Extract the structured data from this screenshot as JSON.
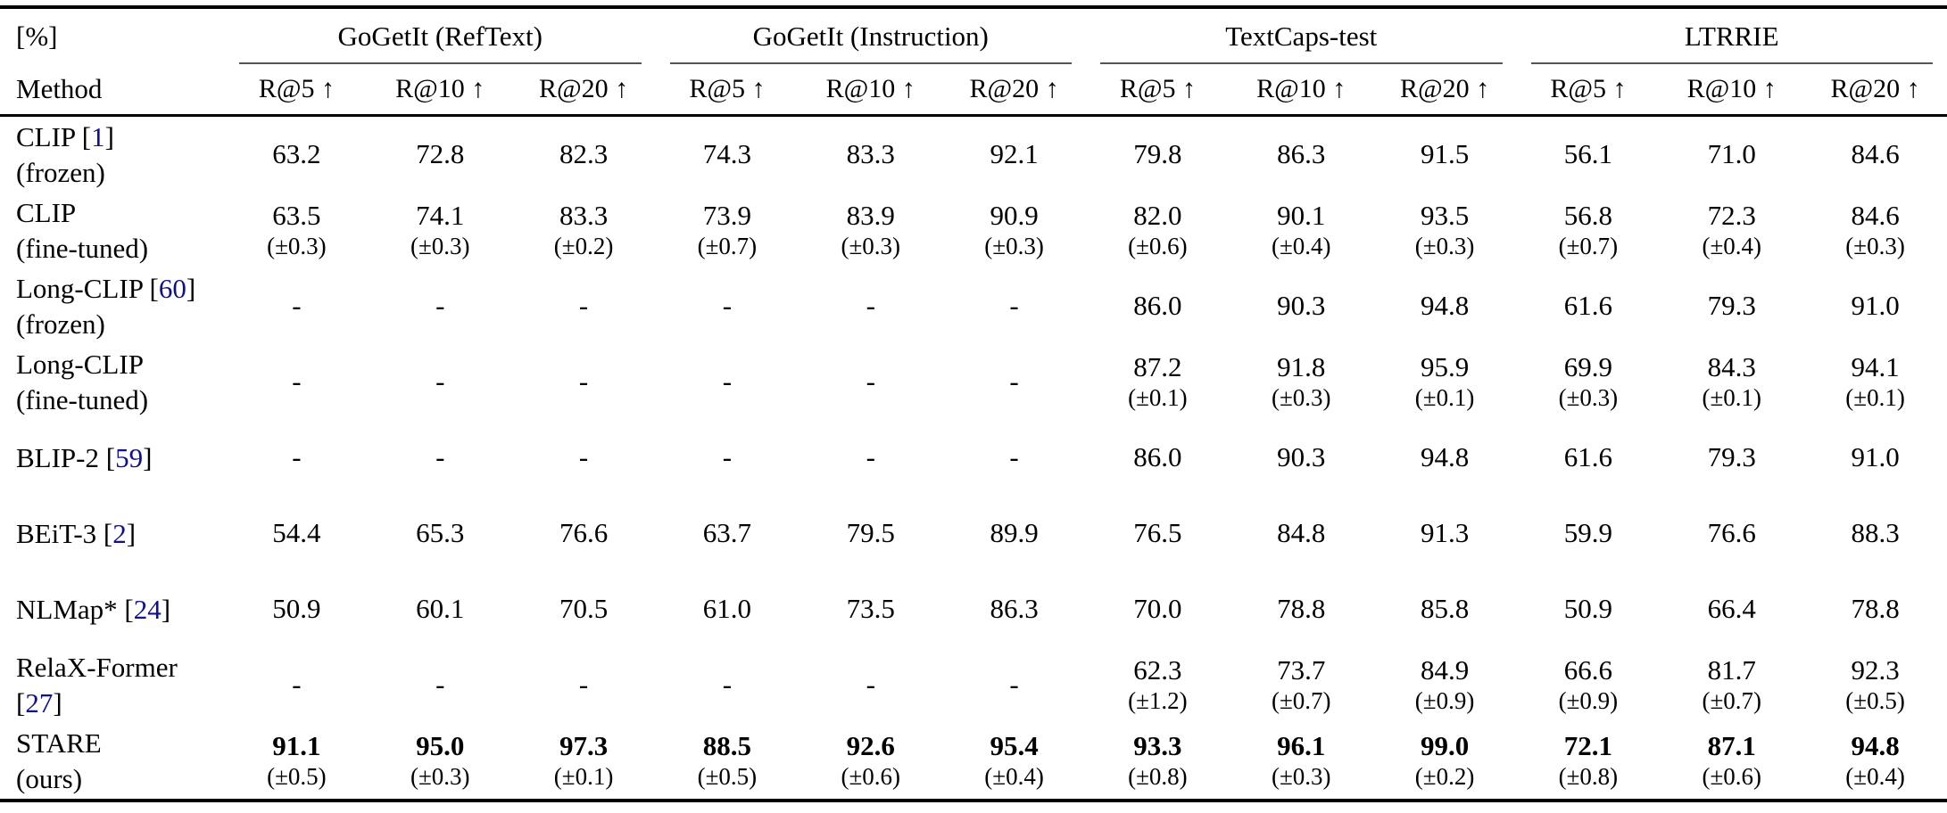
{
  "header": {
    "unit": "[%]",
    "method": "Method",
    "groups": [
      "GoGetIt (RefText)",
      "GoGetIt (Instruction)",
      "TextCaps-test",
      "LTRRIE"
    ],
    "metrics": [
      "R@5 ↑",
      "R@10 ↑",
      "R@20 ↑"
    ]
  },
  "style": {
    "citation_color": "#10108c",
    "text_color": "#000000",
    "background_color": "#ffffff"
  },
  "rows": [
    {
      "method": [
        [
          {
            "t": "CLIP ["
          },
          {
            "t": "1",
            "c": 1
          },
          {
            "t": "]"
          }
        ],
        [
          {
            "t": "(frozen)"
          }
        ]
      ],
      "cells": [
        {
          "v": "63.2"
        },
        {
          "v": "72.8"
        },
        {
          "v": "82.3"
        },
        {
          "v": "74.3"
        },
        {
          "v": "83.3"
        },
        {
          "v": "92.1"
        },
        {
          "v": "79.8"
        },
        {
          "v": "86.3"
        },
        {
          "v": "91.5"
        },
        {
          "v": "56.1"
        },
        {
          "v": "71.0"
        },
        {
          "v": "84.6"
        }
      ]
    },
    {
      "method": [
        [
          {
            "t": "CLIP"
          }
        ],
        [
          {
            "t": "(fine-tuned)"
          }
        ]
      ],
      "cells": [
        {
          "v": "63.5",
          "s": "(±0.3)"
        },
        {
          "v": "74.1",
          "s": "(±0.3)"
        },
        {
          "v": "83.3",
          "s": "(±0.2)"
        },
        {
          "v": "73.9",
          "s": "(±0.7)"
        },
        {
          "v": "83.9",
          "s": "(±0.3)"
        },
        {
          "v": "90.9",
          "s": "(±0.3)"
        },
        {
          "v": "82.0",
          "s": "(±0.6)"
        },
        {
          "v": "90.1",
          "s": "(±0.4)"
        },
        {
          "v": "93.5",
          "s": "(±0.3)"
        },
        {
          "v": "56.8",
          "s": "(±0.7)"
        },
        {
          "v": "72.3",
          "s": "(±0.4)"
        },
        {
          "v": "84.6",
          "s": "(±0.3)"
        }
      ]
    },
    {
      "method": [
        [
          {
            "t": "Long-CLIP ["
          },
          {
            "t": "60",
            "c": 1
          },
          {
            "t": "]"
          }
        ],
        [
          {
            "t": "(frozen)"
          }
        ]
      ],
      "cells": [
        {
          "v": "-"
        },
        {
          "v": "-"
        },
        {
          "v": "-"
        },
        {
          "v": "-"
        },
        {
          "v": "-"
        },
        {
          "v": "-"
        },
        {
          "v": "86.0"
        },
        {
          "v": "90.3"
        },
        {
          "v": "94.8"
        },
        {
          "v": "61.6"
        },
        {
          "v": "79.3"
        },
        {
          "v": "91.0"
        }
      ]
    },
    {
      "method": [
        [
          {
            "t": "Long-CLIP"
          }
        ],
        [
          {
            "t": "(fine-tuned)"
          }
        ]
      ],
      "cells": [
        {
          "v": "-"
        },
        {
          "v": "-"
        },
        {
          "v": "-"
        },
        {
          "v": "-"
        },
        {
          "v": "-"
        },
        {
          "v": "-"
        },
        {
          "v": "87.2",
          "s": "(±0.1)"
        },
        {
          "v": "91.8",
          "s": "(±0.3)"
        },
        {
          "v": "95.9",
          "s": "(±0.1)"
        },
        {
          "v": "69.9",
          "s": "(±0.3)"
        },
        {
          "v": "84.3",
          "s": "(±0.1)"
        },
        {
          "v": "94.1",
          "s": "(±0.1)"
        }
      ]
    },
    {
      "method": [
        [
          {
            "t": "BLIP-2 ["
          },
          {
            "t": "59",
            "c": 1
          },
          {
            "t": "]"
          }
        ]
      ],
      "cells": [
        {
          "v": "-"
        },
        {
          "v": "-"
        },
        {
          "v": "-"
        },
        {
          "v": "-"
        },
        {
          "v": "-"
        },
        {
          "v": "-"
        },
        {
          "v": "86.0"
        },
        {
          "v": "90.3"
        },
        {
          "v": "94.8"
        },
        {
          "v": "61.6"
        },
        {
          "v": "79.3"
        },
        {
          "v": "91.0"
        }
      ]
    },
    {
      "method": [
        [
          {
            "t": "BEiT-3 ["
          },
          {
            "t": "2",
            "c": 1
          },
          {
            "t": "]"
          }
        ]
      ],
      "cells": [
        {
          "v": "54.4"
        },
        {
          "v": "65.3"
        },
        {
          "v": "76.6"
        },
        {
          "v": "63.7"
        },
        {
          "v": "79.5"
        },
        {
          "v": "89.9"
        },
        {
          "v": "76.5"
        },
        {
          "v": "84.8"
        },
        {
          "v": "91.3"
        },
        {
          "v": "59.9"
        },
        {
          "v": "76.6"
        },
        {
          "v": "88.3"
        }
      ]
    },
    {
      "method": [
        [
          {
            "t": "NLMap* ["
          },
          {
            "t": "24",
            "c": 1
          },
          {
            "t": "]"
          }
        ]
      ],
      "cells": [
        {
          "v": "50.9"
        },
        {
          "v": "60.1"
        },
        {
          "v": "70.5"
        },
        {
          "v": "61.0"
        },
        {
          "v": "73.5"
        },
        {
          "v": "86.3"
        },
        {
          "v": "70.0"
        },
        {
          "v": "78.8"
        },
        {
          "v": "85.8"
        },
        {
          "v": "50.9"
        },
        {
          "v": "66.4"
        },
        {
          "v": "78.8"
        }
      ]
    },
    {
      "method": [
        [
          {
            "t": "RelaX-Former"
          }
        ],
        [
          {
            "t": "["
          },
          {
            "t": "27",
            "c": 1
          },
          {
            "t": "]"
          }
        ]
      ],
      "cells": [
        {
          "v": "-"
        },
        {
          "v": "-"
        },
        {
          "v": "-"
        },
        {
          "v": "-"
        },
        {
          "v": "-"
        },
        {
          "v": "-"
        },
        {
          "v": "62.3",
          "s": "(±1.2)"
        },
        {
          "v": "73.7",
          "s": "(±0.7)"
        },
        {
          "v": "84.9",
          "s": "(±0.9)"
        },
        {
          "v": "66.6",
          "s": "(±0.9)"
        },
        {
          "v": "81.7",
          "s": "(±0.7)"
        },
        {
          "v": "92.3",
          "s": "(±0.5)"
        }
      ]
    },
    {
      "method": [
        [
          {
            "t": "STARE"
          }
        ],
        [
          {
            "t": "(ours)"
          }
        ]
      ],
      "cells": [
        {
          "v": "91.1",
          "s": "(±0.5)",
          "b": 1
        },
        {
          "v": "95.0",
          "s": "(±0.3)",
          "b": 1
        },
        {
          "v": "97.3",
          "s": "(±0.1)",
          "b": 1
        },
        {
          "v": "88.5",
          "s": "(±0.5)",
          "b": 1
        },
        {
          "v": "92.6",
          "s": "(±0.6)",
          "b": 1
        },
        {
          "v": "95.4",
          "s": "(±0.4)",
          "b": 1
        },
        {
          "v": "93.3",
          "s": "(±0.8)",
          "b": 1
        },
        {
          "v": "96.1",
          "s": "(±0.3)",
          "b": 1
        },
        {
          "v": "99.0",
          "s": "(±0.2)",
          "b": 1
        },
        {
          "v": "72.1",
          "s": "(±0.8)",
          "b": 1
        },
        {
          "v": "87.1",
          "s": "(±0.6)",
          "b": 1
        },
        {
          "v": "94.8",
          "s": "(±0.4)",
          "b": 1
        }
      ]
    }
  ]
}
